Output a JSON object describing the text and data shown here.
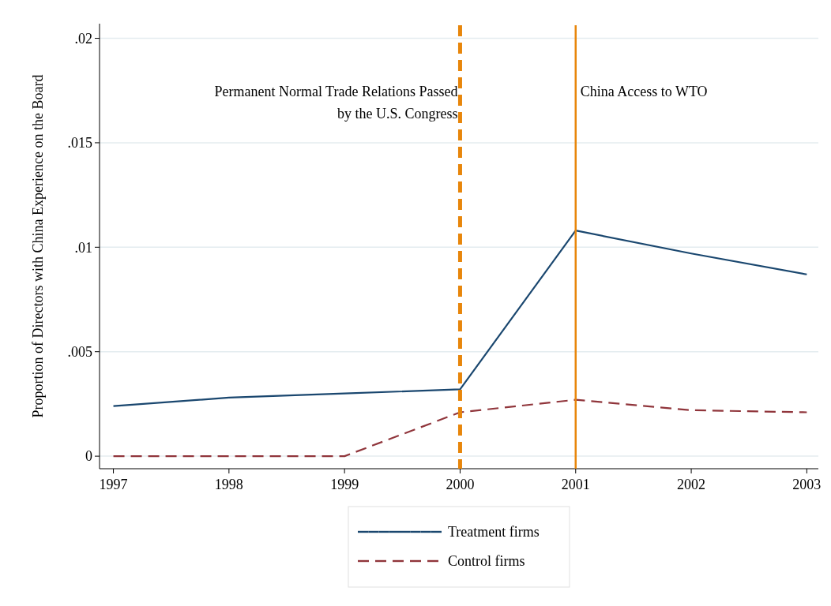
{
  "chart_data": {
    "type": "line",
    "ylabel": "Proportion of Directors with China Experience on the Board",
    "x": [
      1997,
      1998,
      1999,
      2000,
      2001,
      2002,
      2003
    ],
    "series": [
      {
        "name": "Treatment firms",
        "color": "#1a476f",
        "line_style": "solid",
        "values": [
          0.0024,
          0.0028,
          0.003,
          0.0032,
          0.0108,
          0.0097,
          0.0087
        ]
      },
      {
        "name": "Control firms",
        "color": "#90353b",
        "line_style": "dashed",
        "values": [
          0,
          0,
          0,
          0.0021,
          0.0027,
          0.0022,
          0.0021
        ]
      }
    ],
    "xlim": [
      1996.88,
      2003.1
    ],
    "xticks": [
      1997,
      1998,
      1999,
      2000,
      2001,
      2002,
      2003
    ],
    "ylim": [
      -0.0006,
      0.0207
    ],
    "yticks": [
      {
        "value": 0,
        "label": "0"
      },
      {
        "value": 0.005,
        "label": ".005"
      },
      {
        "value": 0.01,
        "label": ".01"
      },
      {
        "value": 0.015,
        "label": ".015"
      },
      {
        "value": 0.02,
        "label": ".02"
      }
    ],
    "grid": "y",
    "legend": "bottom",
    "ref_lines": [
      {
        "axis": "x",
        "value": 2000,
        "label": "Permanent Normal Trade Relations Passed by the U.S. Congress",
        "color": "#e8860b",
        "line_style": "dashed"
      },
      {
        "axis": "x",
        "value": 2001,
        "label": "China Access to WTO",
        "color": "#e8860b",
        "line_style": "solid"
      }
    ]
  }
}
